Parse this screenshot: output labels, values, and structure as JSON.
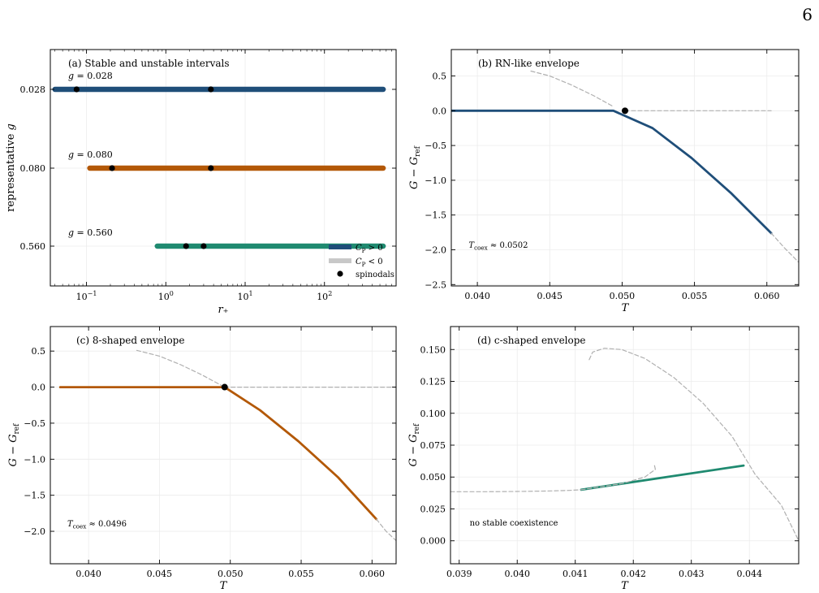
{
  "page_number": "6",
  "chart_data": [
    {
      "id": "a",
      "type": "range",
      "title": "(a) Stable and unstable intervals",
      "xlabel": "r₊",
      "ylabel": "representative g",
      "xscale": "log",
      "xlim": [
        0.035,
        800
      ],
      "xticks": [
        {
          "value": 0.1,
          "base": "10",
          "exp": "−1"
        },
        {
          "value": 1,
          "base": "10",
          "exp": "0"
        },
        {
          "value": 10,
          "base": "10",
          "exp": "1"
        },
        {
          "value": 100,
          "base": "10",
          "exp": "2"
        }
      ],
      "ytick_labels": [
        "0.028",
        "0.080",
        "0.560"
      ],
      "grid": true,
      "rows": [
        {
          "tick": "0.028",
          "label": "g = 0.028",
          "color": "#1f4e79",
          "range": [
            0.04,
            550
          ],
          "spinodals": [
            0.075,
            3.7
          ]
        },
        {
          "tick": "0.080",
          "label": "g = 0.080",
          "color": "#b35806",
          "range": [
            0.11,
            550
          ],
          "spinodals": [
            0.21,
            3.7
          ]
        },
        {
          "tick": "0.560",
          "label": "g = 0.560",
          "color": "#1f8a70",
          "range": [
            0.78,
            550
          ],
          "spinodals": [
            1.8,
            3.0
          ]
        }
      ],
      "legend": {
        "position": "lower-right",
        "entries": [
          {
            "label": "C_P > 0",
            "base": "C",
            "sub": "P",
            "rest": " > 0",
            "color": "#1f4e79",
            "kind": "line"
          },
          {
            "label": "C_P < 0",
            "base": "C",
            "sub": "P",
            "rest": " < 0",
            "color": "#c8c8c8",
            "kind": "line"
          },
          {
            "label": "spinodals",
            "color": "#000000",
            "kind": "dot"
          }
        ]
      }
    },
    {
      "id": "b",
      "type": "line",
      "title": "(b) RN-like envelope",
      "xlabel": "T",
      "ylabel": "G − G_ref",
      "xlim": [
        0.0382,
        0.0622
      ],
      "ylim": [
        -2.52,
        0.88
      ],
      "xticks": [
        0.04,
        0.045,
        0.05,
        0.055,
        0.06
      ],
      "xtick_labels": [
        "0.040",
        "0.045",
        "0.050",
        "0.055",
        "0.060"
      ],
      "yticks": [
        0.5,
        0.0,
        -0.5,
        -1.0,
        -1.5,
        -2.0,
        -2.5
      ],
      "ytick_labels": [
        "0.5",
        "0.0",
        "−0.5",
        "−1.0",
        "−1.5",
        "−2.0",
        "−2.5"
      ],
      "grid": true,
      "annotation": {
        "label": "T_coex ≈ 0.0502",
        "base": "T",
        "sub": "coex",
        "rest": " ≈ 0.0502",
        "x": 0.0394,
        "y": -1.97
      },
      "coex_point": {
        "x": 0.0502,
        "y": 0.0
      },
      "series": [
        {
          "style": "solid",
          "color": "#1f4e79",
          "x": [
            0.0382,
            0.0494,
            0.0521,
            0.0548,
            0.0575,
            0.0603
          ],
          "y": [
            0.0,
            0.0,
            -0.25,
            -0.68,
            -1.18,
            -1.76
          ]
        },
        {
          "style": "dashed",
          "color": "#b0b0b0",
          "x": [
            0.0437,
            0.045,
            0.0465,
            0.048,
            0.0494
          ],
          "y": [
            0.57,
            0.5,
            0.37,
            0.22,
            0.06
          ]
        },
        {
          "style": "dashed",
          "color": "#b0b0b0",
          "x": [
            0.0502,
            0.0603
          ],
          "y": [
            0.0,
            0.0
          ]
        },
        {
          "style": "dashed",
          "color": "#b0b0b0",
          "x": [
            0.0603,
            0.0612,
            0.0622
          ],
          "y": [
            -1.76,
            -1.97,
            -2.18
          ]
        }
      ]
    },
    {
      "id": "c",
      "type": "line",
      "title": "(c) 8-shaped envelope",
      "xlabel": "T",
      "ylabel": "G − G_ref",
      "xlim": [
        0.0373,
        0.0617
      ],
      "ylim": [
        -2.45,
        0.84
      ],
      "xticks": [
        0.04,
        0.045,
        0.05,
        0.055,
        0.06
      ],
      "xtick_labels": [
        "0.040",
        "0.045",
        "0.050",
        "0.055",
        "0.060"
      ],
      "yticks": [
        0.5,
        0.0,
        -0.5,
        -1.0,
        -1.5,
        -2.0
      ],
      "ytick_labels": [
        "0.5",
        "0.0",
        "−0.5",
        "−1.0",
        "−1.5",
        "−2.0"
      ],
      "grid": true,
      "annotation": {
        "label": "T_coex ≈ 0.0496",
        "base": "T",
        "sub": "coex",
        "rest": " ≈ 0.0496",
        "x": 0.0385,
        "y": -1.93
      },
      "coex_point": {
        "x": 0.0496,
        "y": 0.0
      },
      "series": [
        {
          "style": "solid",
          "color": "#b35806",
          "x": [
            0.038,
            0.0496,
            0.0521,
            0.0548,
            0.0576,
            0.0603
          ],
          "y": [
            0.0,
            0.0,
            -0.32,
            -0.75,
            -1.25,
            -1.83
          ]
        },
        {
          "style": "dashed",
          "color": "#b0b0b0",
          "x": [
            0.0434,
            0.045,
            0.0465,
            0.048,
            0.0496
          ],
          "y": [
            0.51,
            0.43,
            0.31,
            0.17,
            0.0
          ]
        },
        {
          "style": "dashed",
          "color": "#b0b0b0",
          "x": [
            0.0496,
            0.0617
          ],
          "y": [
            0.0,
            0.0
          ]
        },
        {
          "style": "dashed",
          "color": "#b0b0b0",
          "x": [
            0.0603,
            0.061,
            0.0617
          ],
          "y": [
            -1.83,
            -2.0,
            -2.13
          ]
        }
      ]
    },
    {
      "id": "d",
      "type": "line",
      "title": "(d) c-shaped envelope",
      "xlabel": "T",
      "ylabel": "G − G_ref",
      "xlim": [
        0.03885,
        0.04485
      ],
      "ylim": [
        -0.018,
        0.168
      ],
      "xticks": [
        0.039,
        0.04,
        0.041,
        0.042,
        0.043,
        0.044
      ],
      "xtick_labels": [
        "0.039",
        "0.040",
        "0.041",
        "0.042",
        "0.043",
        "0.044"
      ],
      "yticks": [
        0.0,
        0.025,
        0.05,
        0.075,
        0.1,
        0.125,
        0.15
      ],
      "ytick_labels": [
        "0.000",
        "0.025",
        "0.050",
        "0.075",
        "0.100",
        "0.125",
        "0.150"
      ],
      "grid": true,
      "annotation": {
        "label": "no stable coexistence",
        "x": 0.03918,
        "y": 0.012
      },
      "series": [
        {
          "style": "solid",
          "color": "#1f8a70",
          "x": [
            0.0411,
            0.0439
          ],
          "y": [
            0.04,
            0.059
          ]
        },
        {
          "style": "dashed",
          "color": "#b0b0b0",
          "x": [
            0.03885,
            0.0395,
            0.04,
            0.0405,
            0.0409,
            0.0411
          ],
          "y": [
            0.0385,
            0.0385,
            0.0387,
            0.039,
            0.0395,
            0.04
          ]
        },
        {
          "style": "dashed",
          "color": "#b0b0b0",
          "x": [
            0.0411,
            0.0418,
            0.0422,
            0.04238,
            0.04236
          ],
          "y": [
            0.04,
            0.0448,
            0.05,
            0.056,
            0.06
          ]
        },
        {
          "style": "dashed",
          "color": "#b0b0b0",
          "x": [
            0.04124,
            0.0413,
            0.0415,
            0.0418,
            0.0422,
            0.0427,
            0.0432,
            0.0437,
            0.0441,
            0.04455,
            0.04485
          ],
          "y": [
            0.142,
            0.148,
            0.151,
            0.15,
            0.143,
            0.128,
            0.108,
            0.082,
            0.052,
            0.028,
            0.0
          ]
        }
      ]
    }
  ]
}
